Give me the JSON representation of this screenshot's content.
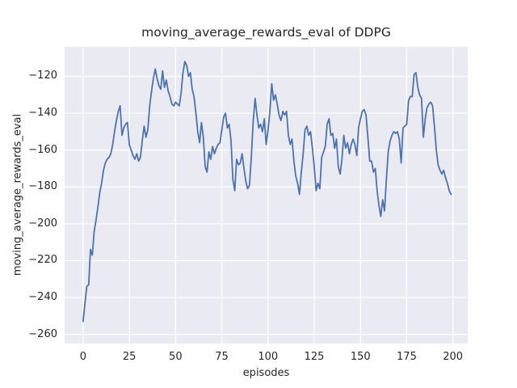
{
  "chart_data": {
    "type": "line",
    "title": "moving_average_rewards_eval of DDPG",
    "xlabel": "episodes",
    "ylabel": "moving_average_rewards_eval",
    "x_ticks": [
      0,
      25,
      50,
      75,
      100,
      125,
      150,
      175,
      200
    ],
    "y_ticks": [
      -120,
      -140,
      -160,
      -180,
      -200,
      -220,
      -240,
      -260
    ],
    "xlim": [
      -10,
      208
    ],
    "ylim": [
      -265,
      -104
    ],
    "grid": true,
    "legend": "none",
    "colors": {
      "line": "#4c72b0",
      "plot_background": "#eaeaf2",
      "gridline": "#ffffff",
      "figure_background": "#ffffff",
      "text": "#262626"
    },
    "series": [
      {
        "name": "moving_average_rewards_eval",
        "x_start": 0,
        "x_step": 1,
        "y": [
          -253,
          -243,
          -234,
          -233,
          -214,
          -217,
          -204,
          -198,
          -191,
          -183,
          -178,
          -171,
          -167,
          -165,
          -164,
          -162,
          -157,
          -150,
          -144,
          -139,
          -136,
          -152,
          -148,
          -146,
          -145,
          -157,
          -160,
          -163,
          -165,
          -162,
          -166,
          -164,
          -155,
          -147,
          -153,
          -149,
          -136,
          -128,
          -121,
          -116,
          -121,
          -125,
          -127,
          -117,
          -126,
          -122,
          -128,
          -131,
          -135,
          -136,
          -134,
          -135,
          -136,
          -129,
          -118,
          -112,
          -114,
          -120,
          -118,
          -127,
          -131,
          -140,
          -150,
          -156,
          -145,
          -153,
          -169,
          -172,
          -161,
          -165,
          -158,
          -162,
          -159,
          -157,
          -156,
          -149,
          -142,
          -140,
          -148,
          -146,
          -155,
          -176,
          -182,
          -165,
          -168,
          -167,
          -162,
          -170,
          -177,
          -181,
          -179,
          -163,
          -144,
          -132,
          -141,
          -148,
          -146,
          -150,
          -143,
          -157,
          -149,
          -139,
          -124,
          -133,
          -130,
          -135,
          -141,
          -144,
          -139,
          -141,
          -139,
          -152,
          -157,
          -154,
          -166,
          -174,
          -178,
          -184,
          -172,
          -162,
          -149,
          -147,
          -152,
          -150,
          -159,
          -169,
          -182,
          -178,
          -181,
          -164,
          -161,
          -158,
          -146,
          -143,
          -152,
          -151,
          -159,
          -154,
          -169,
          -173,
          -165,
          -152,
          -159,
          -156,
          -162,
          -157,
          -154,
          -157,
          -163,
          -148,
          -143,
          -139,
          -138,
          -141,
          -153,
          -166,
          -166,
          -172,
          -170,
          -182,
          -190,
          -196,
          -187,
          -193,
          -176,
          -161,
          -155,
          -152,
          -150,
          -151,
          -150,
          -154,
          -167,
          -148,
          -147,
          -146,
          -133,
          -131,
          -131,
          -119,
          -118,
          -126,
          -130,
          -132,
          -153,
          -143,
          -137,
          -135,
          -134,
          -136,
          -147,
          -160,
          -168,
          -171,
          -173,
          -171,
          -175,
          -178,
          -182,
          -184
        ]
      }
    ]
  }
}
